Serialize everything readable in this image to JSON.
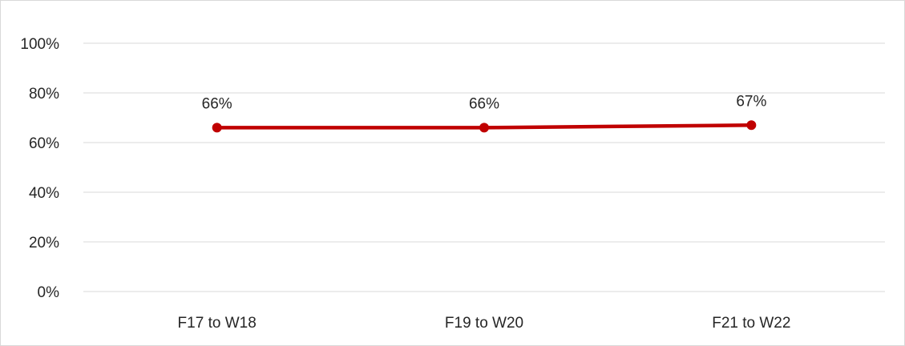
{
  "chart_data": {
    "type": "line",
    "title": "",
    "xlabel": "",
    "ylabel": "",
    "categories": [
      "F17 to W18",
      "F19 to W20",
      "F21 to W22"
    ],
    "series": [
      {
        "values": [
          66,
          66,
          67
        ],
        "data_labels": [
          "66%",
          "66%",
          "67%"
        ],
        "color": "#c00000"
      }
    ],
    "ylim": [
      0,
      100
    ],
    "y_ticks": [
      0,
      20,
      40,
      60,
      80,
      100
    ],
    "y_tick_labels": [
      "0%",
      "20%",
      "40%",
      "60%",
      "80%",
      "100%"
    ],
    "grid": true,
    "legend": "none"
  }
}
